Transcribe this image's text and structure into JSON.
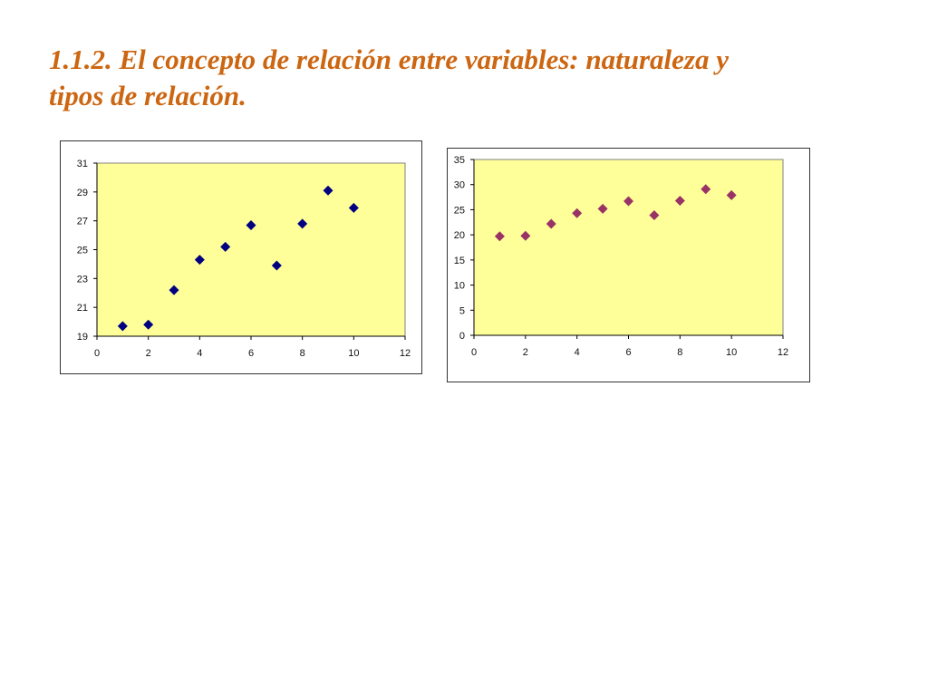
{
  "slide": {
    "title_line1": "1.1.2. El concepto de relación entre variables: naturaleza y",
    "title_line2": "tipos de relación.",
    "title_color": "#cc6611"
  },
  "chart_data": [
    {
      "type": "scatter",
      "title": "",
      "xlabel": "",
      "ylabel": "",
      "xlim": [
        0,
        12
      ],
      "ylim": [
        19,
        31
      ],
      "xticks": [
        0,
        2,
        4,
        6,
        8,
        10,
        12
      ],
      "yticks": [
        19,
        21,
        23,
        25,
        27,
        29,
        31
      ],
      "grid": false,
      "legend": "none",
      "plot_background": "#ffff99",
      "marker": "diamond",
      "series": [
        {
          "color": "#000080",
          "x": [
            1,
            2,
            3,
            4,
            5,
            6,
            7,
            8,
            9,
            10
          ],
          "y": [
            19.7,
            19.8,
            22.2,
            24.3,
            25.2,
            26.7,
            23.9,
            26.8,
            29.1,
            27.9
          ]
        }
      ]
    },
    {
      "type": "scatter",
      "title": "",
      "xlabel": "",
      "ylabel": "",
      "xlim": [
        0,
        12
      ],
      "ylim": [
        0,
        35
      ],
      "xticks": [
        0,
        2,
        4,
        6,
        8,
        10,
        12
      ],
      "yticks": [
        0,
        5,
        10,
        15,
        20,
        25,
        30,
        35
      ],
      "grid": false,
      "legend": "none",
      "plot_background": "#ffff99",
      "marker": "diamond",
      "series": [
        {
          "color": "#993366",
          "x": [
            1,
            2,
            3,
            4,
            5,
            6,
            7,
            8,
            9,
            10
          ],
          "y": [
            19.7,
            19.8,
            22.2,
            24.3,
            25.2,
            26.7,
            23.9,
            26.8,
            29.1,
            27.9
          ]
        }
      ]
    }
  ]
}
